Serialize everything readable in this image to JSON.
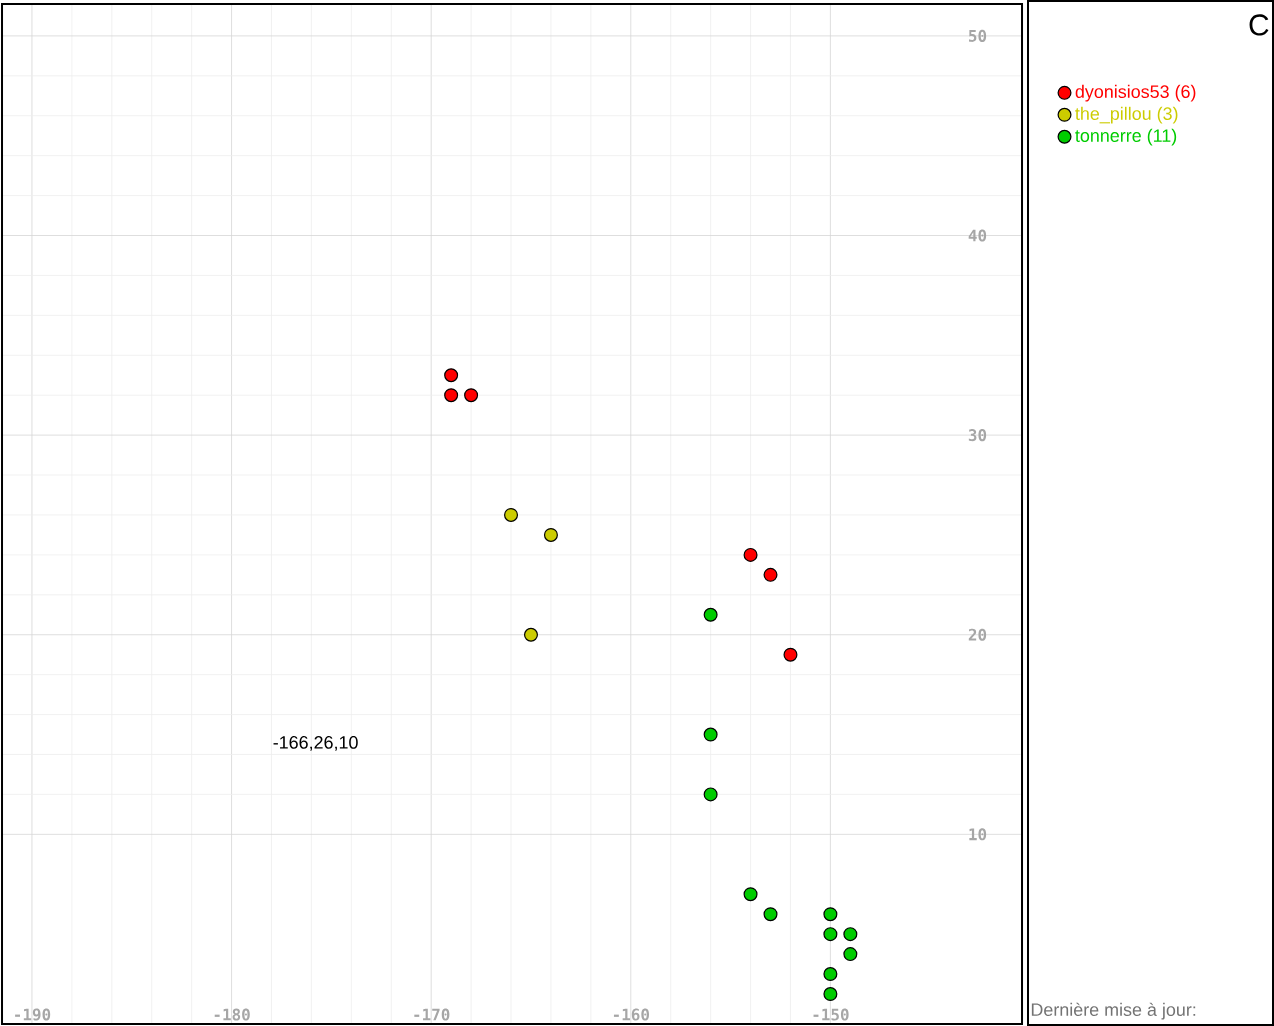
{
  "chart_data": {
    "type": "scatter",
    "title": "C",
    "xlim": [
      -191.5,
      -140.4
    ],
    "ylim": [
      0.5,
      51.6
    ],
    "xticks": [
      -190,
      -180,
      -170,
      -160,
      -150
    ],
    "yticks": [
      10,
      20,
      30,
      40,
      50
    ],
    "grid": true,
    "legend": "right",
    "marker": "circle",
    "series": [
      {
        "name": "dyonisios53 (6)",
        "color": "#ff0000",
        "x": [
          -169,
          -169,
          -168,
          -154,
          -153,
          -152
        ],
        "values": [
          33,
          32,
          32,
          24,
          23,
          19
        ]
      },
      {
        "name": "the_pillou (3)",
        "color": "#cccc00",
        "x": [
          -166,
          -164,
          -165
        ],
        "values": [
          26,
          25,
          20
        ]
      },
      {
        "name": "tonnerre (11)",
        "color": "#00cc00",
        "x": [
          -156,
          -156,
          -156,
          -154,
          -153,
          -150,
          -150,
          -149,
          -149,
          -150,
          -150
        ],
        "values": [
          21,
          15,
          12,
          7,
          6,
          6,
          5,
          5,
          4,
          3,
          2
        ]
      }
    ],
    "annotations": [
      "-166,26,10",
      "Dernière mise à jour:"
    ]
  }
}
